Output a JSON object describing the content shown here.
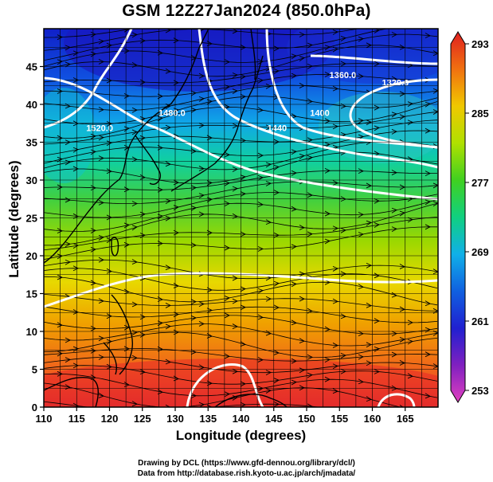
{
  "title": "GSM 12Z27Jan2024 (850.0hPa)",
  "credits": {
    "line1": "Drawing by DCL (https://www.gfd-dennou.org/library/dcl/)",
    "line2": "Data from http://database.rish.kyoto-u.ac.jp/arch/jmadata/"
  },
  "chart_data": {
    "type": "heatmap",
    "xlabel": "Longitude (degrees)",
    "ylabel": "Latitude  (degrees)",
    "xlim": [
      110,
      170
    ],
    "ylim": [
      0,
      50
    ],
    "x_ticks": [
      110,
      115,
      120,
      125,
      130,
      135,
      140,
      145,
      150,
      155,
      160,
      165
    ],
    "y_ticks": [
      0,
      5,
      10,
      15,
      20,
      25,
      30,
      35,
      40,
      45
    ],
    "colorbar": {
      "min": 253,
      "max": 293,
      "tick_values": [
        253,
        261,
        269,
        277,
        285,
        293
      ],
      "tick_labels": [
        "253",
        "261",
        "269",
        "277",
        "285",
        "293"
      ],
      "colors": [
        "#e040c0",
        "#8020c0",
        "#1010d0",
        "#1070e0",
        "#00c8e0",
        "#10d080",
        "#40d020",
        "#b0e000",
        "#f0d000",
        "#f09000",
        "#f05020",
        "#e02020"
      ]
    },
    "contour_labels": [
      {
        "text": "1520.0",
        "lon": 118.5,
        "lat": 36.5
      },
      {
        "text": "1480.0",
        "lon": 129.5,
        "lat": 38.5
      },
      {
        "text": "1440",
        "lon": 145.5,
        "lat": 36.5
      },
      {
        "text": "1320.0",
        "lon": 163.5,
        "lat": 42.5
      },
      {
        "text": "1360.0",
        "lon": 155.5,
        "lat": 43.5
      },
      {
        "text": "1400",
        "lon": 152.0,
        "lat": 38.5
      }
    ]
  }
}
